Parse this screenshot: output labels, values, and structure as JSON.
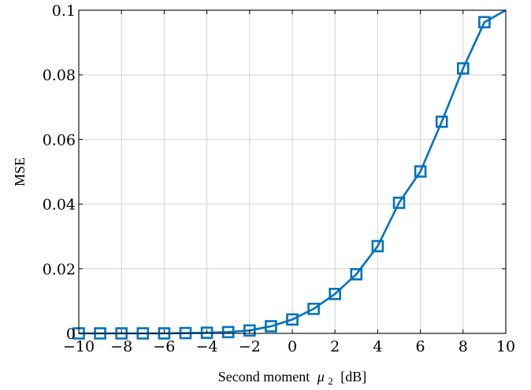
{
  "chart_data": {
    "type": "line",
    "xlabel": "Second moment",
    "xlabel_symbol": "μ",
    "xlabel_subscript": "2",
    "xlabel_unit": "[dB]",
    "ylabel": "MSE",
    "xlim": [
      -10,
      10
    ],
    "ylim": [
      0,
      0.1
    ],
    "grid": true,
    "x_ticks": [
      -10,
      -8,
      -6,
      -4,
      -2,
      0,
      2,
      4,
      6,
      8,
      10
    ],
    "x_tick_labels": [
      "−10",
      "−8",
      "−6",
      "−4",
      "−2",
      "0",
      "2",
      "4",
      "6",
      "8",
      "10"
    ],
    "y_ticks": [
      0,
      0.02,
      0.04,
      0.06,
      0.08,
      0.1
    ],
    "y_tick_labels": [
      "0",
      "0.02",
      "0.04",
      "0.06",
      "0.08",
      "0.1"
    ],
    "series": [
      {
        "color": "#0072BD",
        "marker": "square",
        "x": [
          -10,
          -9,
          -8,
          -7,
          -6,
          -5,
          -4,
          -3,
          -2,
          -1,
          0,
          1,
          2,
          3,
          4,
          5,
          6,
          7,
          8,
          9
        ],
        "y": [
          0,
          0,
          0,
          0,
          0,
          0.0001,
          0.0002,
          0.0004,
          0.0009,
          0.0022,
          0.0043,
          0.0076,
          0.0122,
          0.0183,
          0.027,
          0.0404,
          0.0501,
          0.0655,
          0.082,
          0.0963
        ]
      }
    ],
    "line_end": {
      "x": 10,
      "y": 0.1
    }
  }
}
